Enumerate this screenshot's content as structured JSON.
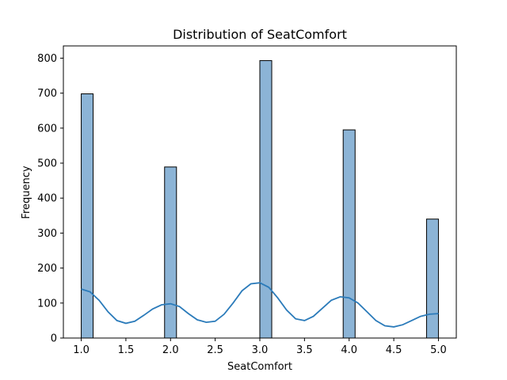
{
  "chart_data": {
    "type": "bar",
    "title": "Distribution of SeatComfort",
    "xlabel": "SeatComfort",
    "ylabel": "Frequency",
    "xlim": [
      0.8,
      5.2
    ],
    "ylim": [
      0,
      835
    ],
    "x_ticks": [
      1.0,
      1.5,
      2.0,
      2.5,
      3.0,
      3.5,
      4.0,
      4.5,
      5.0
    ],
    "x_tick_labels": [
      "1.0",
      "1.5",
      "2.0",
      "2.5",
      "3.0",
      "3.5",
      "4.0",
      "4.5",
      "5.0"
    ],
    "y_ticks": [
      0,
      100,
      200,
      300,
      400,
      500,
      600,
      700,
      800
    ],
    "y_tick_labels": [
      "0",
      "100",
      "200",
      "300",
      "400",
      "500",
      "600",
      "700",
      "800"
    ],
    "bin_width": 0.1333,
    "bins": [
      {
        "x0": 1.0,
        "x1": 1.1333,
        "count": 698
      },
      {
        "x0": 1.9333,
        "x1": 2.0667,
        "count": 489
      },
      {
        "x0": 3.0,
        "x1": 3.1333,
        "count": 793
      },
      {
        "x0": 3.9333,
        "x1": 4.0667,
        "count": 595
      },
      {
        "x0": 4.8667,
        "x1": 5.0,
        "count": 340
      }
    ],
    "kde": {
      "x": [
        1.0,
        1.1,
        1.2,
        1.3,
        1.4,
        1.5,
        1.6,
        1.7,
        1.8,
        1.9,
        2.0,
        2.1,
        2.2,
        2.3,
        2.4,
        2.5,
        2.6,
        2.7,
        2.8,
        2.9,
        3.0,
        3.1,
        3.2,
        3.3,
        3.4,
        3.5,
        3.6,
        3.7,
        3.8,
        3.9,
        4.0,
        4.1,
        4.2,
        4.3,
        4.4,
        4.5,
        4.6,
        4.7,
        4.8,
        4.9,
        5.0
      ],
      "y": [
        140,
        132,
        108,
        75,
        50,
        42,
        48,
        65,
        83,
        95,
        98,
        90,
        70,
        52,
        45,
        48,
        68,
        100,
        135,
        155,
        158,
        145,
        115,
        80,
        55,
        50,
        62,
        85,
        108,
        118,
        115,
        100,
        75,
        50,
        35,
        32,
        38,
        50,
        62,
        68,
        70
      ]
    },
    "colors": {
      "bar_fill": "#8cb4d6",
      "bar_edge": "#000000",
      "kde_line": "#2b7bba"
    },
    "grid": false
  }
}
